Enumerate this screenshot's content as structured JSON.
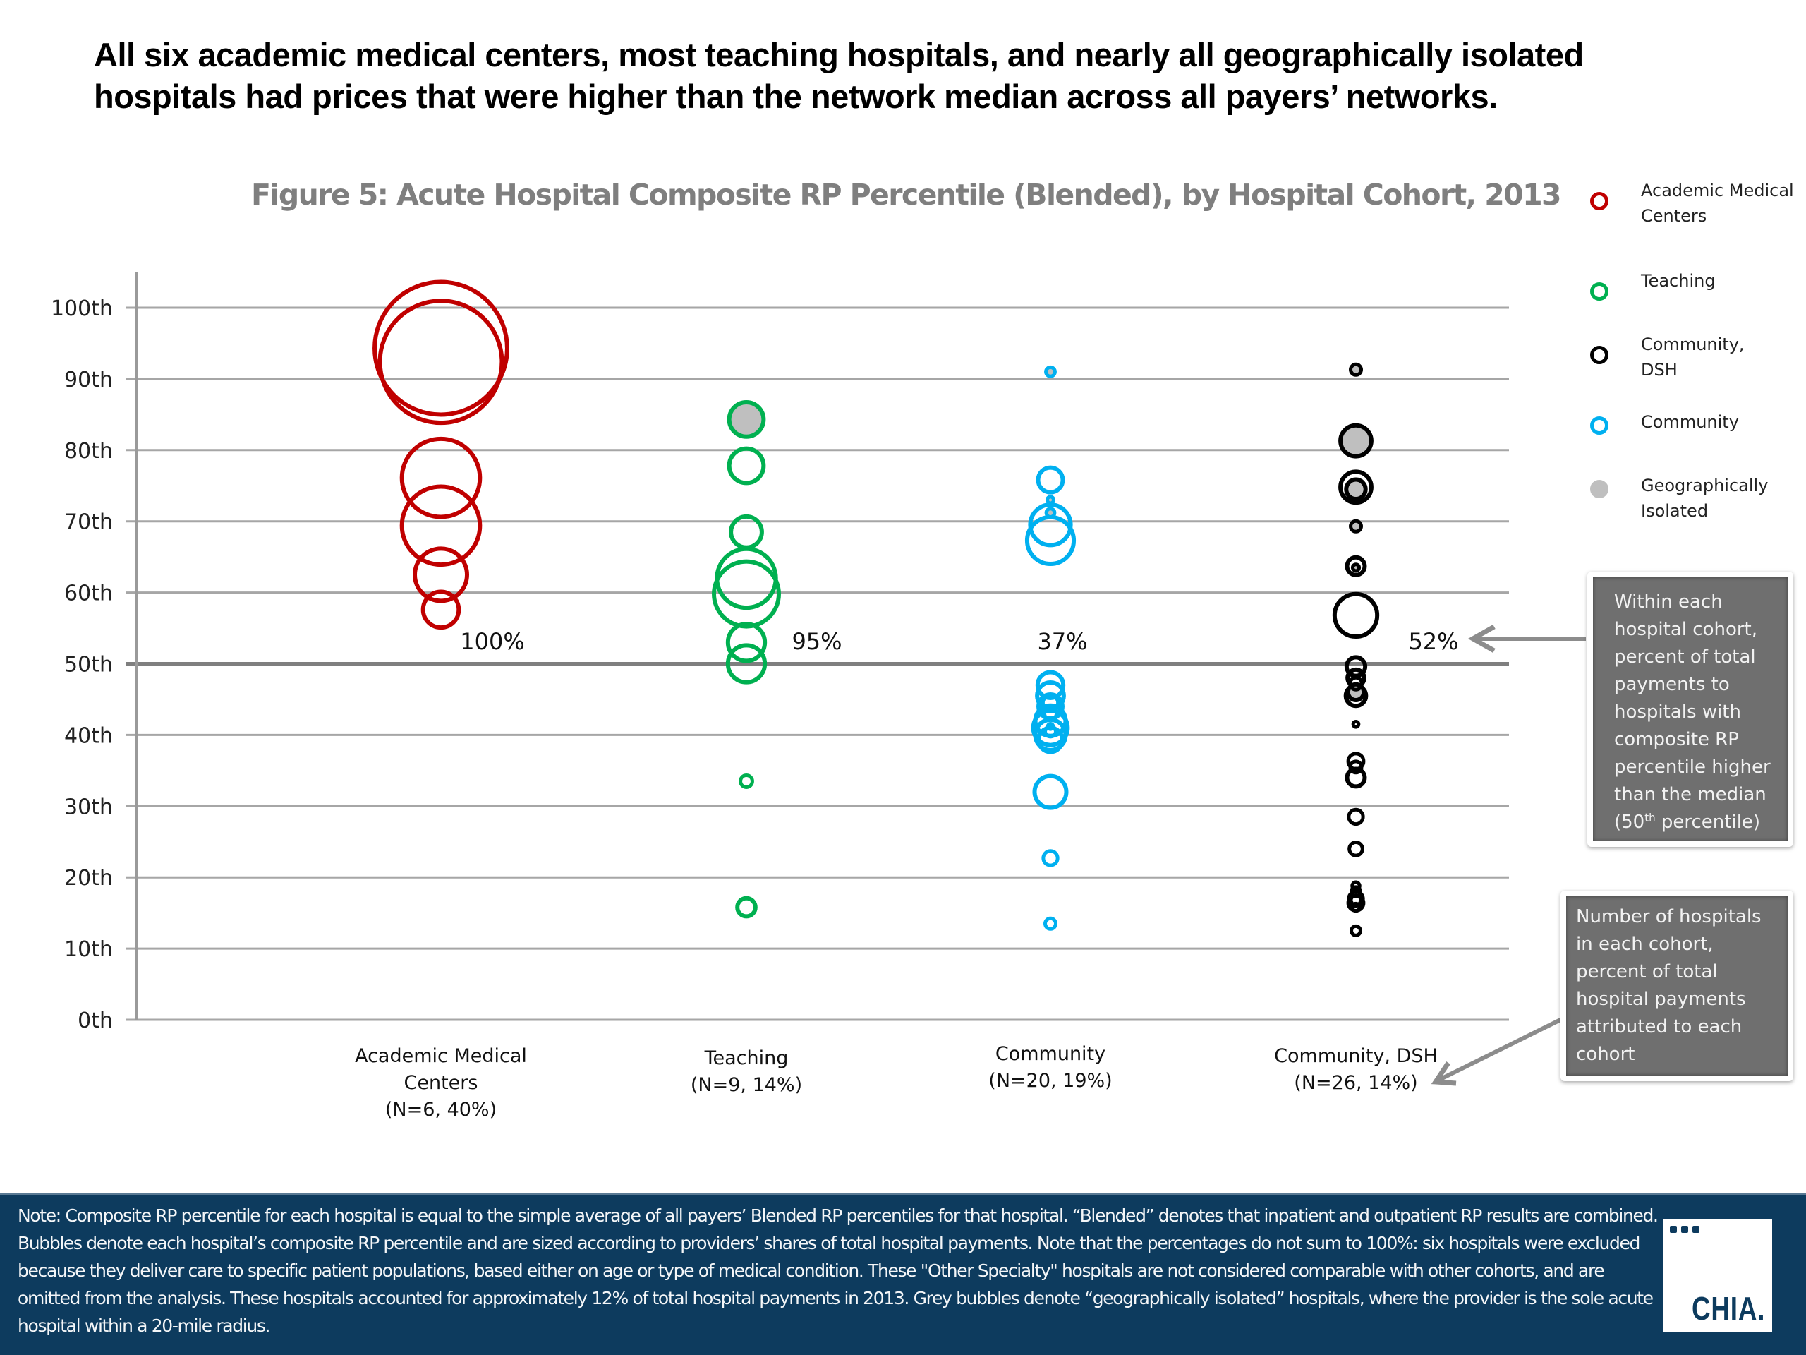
{
  "headline": "All six academic medical centers, most teaching hospitals, and nearly all geographically isolated hospitals had prices that were higher than the network median across all payers’ networks.",
  "callouts": {
    "above_median": {
      "text_main": "Within each hospital cohort, percent of total payments to hospitals with composite RP percentile higher than the median (50",
      "sup": "th",
      "text_end": " percentile)"
    },
    "cohort_info": "Number of hospitals in each cohort, percent of total hospital payments attributed to each cohort"
  },
  "footer": {
    "note": "Note: Composite RP percentile for each hospital is equal to the simple average of all payers’ Blended RP percentiles for that hospital. “Blended” denotes that inpatient and outpatient RP results are  combined. Bubbles denote each hospital’s composite RP percentile and are sized according to providers’ shares of total hospital payments. Note that the percentages do not sum to 100%: six hospitals were excluded because they deliver care to specific patient populations, based either on age or type of medical condition. These \"Other Specialty\" hospitals are not considered comparable with other cohorts, and are omitted from the analysis. These hospitals accounted for  approximately 12% of total hospital payments in 2013. Grey bubbles denote “geographically isolated” hospitals, where the provider is the sole acute hospital within a 20-mile radius.",
    "logo_text": "CHIA."
  },
  "chart_data": {
    "type": "scatter",
    "subtype": "bubble",
    "title": "Figure 5: Acute Hospital Composite RP Percentile (Blended), by Hospital Cohort, 2013",
    "xlabel": "",
    "ylabel": "",
    "ylim": [
      0,
      100
    ],
    "yticks": [
      0,
      10,
      20,
      30,
      40,
      50,
      60,
      70,
      80,
      90,
      100
    ],
    "ytick_labels": [
      "0th",
      "10th",
      "20th",
      "30th",
      "40th",
      "50th",
      "60th",
      "70th",
      "80th",
      "90th",
      "100th"
    ],
    "grid": true,
    "reference_line": {
      "y": 50,
      "label": "median (50th percentile)"
    },
    "legend_position": "right",
    "legend": [
      {
        "label": "Academic Medical Centers",
        "color": "#c00000",
        "style": "ring"
      },
      {
        "label": "Teaching",
        "color": "#00b050",
        "style": "ring"
      },
      {
        "label": "Community, DSH",
        "color": "#000000",
        "style": "ring"
      },
      {
        "label": "Community",
        "color": "#00b0f0",
        "style": "ring"
      },
      {
        "label": "Geographically Isolated",
        "color": "#bfbfbf",
        "style": "filled"
      }
    ],
    "geo_isolated_fill": "#bfbfbf",
    "size_note": "bubble area proportional to relative share of total hospital payments (relative units, estimated)",
    "categories": [
      {
        "name": "Academic Medical Centers",
        "label_lines": [
          "Academic Medical",
          "Centers",
          "(N=6, 40%)"
        ],
        "n": 6,
        "payment_share_pct": 40,
        "pct_above_median": "100%",
        "color": "#c00000",
        "points": [
          {
            "y": 94.3,
            "size": 94,
            "geo": false
          },
          {
            "y": 92.4,
            "size": 80,
            "geo": false
          },
          {
            "y": 76.1,
            "size": 34,
            "geo": false
          },
          {
            "y": 69.4,
            "size": 34,
            "geo": false
          },
          {
            "y": 62.5,
            "size": 16,
            "geo": false
          },
          {
            "y": 57.6,
            "size": 8,
            "geo": false
          }
        ]
      },
      {
        "name": "Teaching",
        "label_lines": [
          "Teaching",
          "(N=9, 14%)"
        ],
        "n": 9,
        "payment_share_pct": 14,
        "pct_above_median": "95%",
        "color": "#00b050",
        "points": [
          {
            "y": 84.3,
            "size": 7.5,
            "geo": true
          },
          {
            "y": 77.8,
            "size": 7.5,
            "geo": false
          },
          {
            "y": 68.5,
            "size": 6.2,
            "geo": false
          },
          {
            "y": 62.0,
            "size": 20,
            "geo": false
          },
          {
            "y": 59.8,
            "size": 24,
            "geo": false
          },
          {
            "y": 53.0,
            "size": 8.5,
            "geo": false
          },
          {
            "y": 50.0,
            "size": 8.5,
            "geo": false
          },
          {
            "y": 33.5,
            "size": 1.2,
            "geo": false
          },
          {
            "y": 15.8,
            "size": 2.5,
            "geo": false
          }
        ]
      },
      {
        "name": "Community",
        "label_lines": [
          "Community",
          "(N=20, 19%)"
        ],
        "n": 20,
        "payment_share_pct": 19,
        "pct_above_median": "37%",
        "color": "#00b0f0",
        "points": [
          {
            "y": 91.0,
            "size": 0.8,
            "geo": true
          },
          {
            "y": 75.8,
            "size": 4.2,
            "geo": false
          },
          {
            "y": 71.2,
            "size": 0.7,
            "geo": true
          },
          {
            "y": 69.5,
            "size": 10,
            "geo": false
          },
          {
            "y": 67.3,
            "size": 13,
            "geo": false
          },
          {
            "y": 73.0,
            "size": 0.5,
            "geo": true
          },
          {
            "y": 47.0,
            "size": 4.5,
            "geo": false
          },
          {
            "y": 45.5,
            "size": 4.8,
            "geo": false
          },
          {
            "y": 44.5,
            "size": 2.0,
            "geo": false
          },
          {
            "y": 44.0,
            "size": 4.0,
            "geo": false
          },
          {
            "y": 43.0,
            "size": 1.2,
            "geo": false
          },
          {
            "y": 42.0,
            "size": 6.0,
            "geo": false
          },
          {
            "y": 41.2,
            "size": 0.4,
            "geo": false
          },
          {
            "y": 41.0,
            "size": 7.5,
            "geo": false
          },
          {
            "y": 40.5,
            "size": 1.0,
            "geo": false
          },
          {
            "y": 40.0,
            "size": 6.0,
            "geo": false
          },
          {
            "y": 39.3,
            "size": 4.0,
            "geo": false
          },
          {
            "y": 32.0,
            "size": 6.5,
            "geo": false
          },
          {
            "y": 22.7,
            "size": 1.6,
            "geo": false
          },
          {
            "y": 13.5,
            "size": 1.0,
            "geo": false
          }
        ]
      },
      {
        "name": "Community, DSH",
        "label_lines": [
          "Community, DSH",
          "(N=26, 14%)"
        ],
        "n": 26,
        "payment_share_pct": 14,
        "pct_above_median": "52%",
        "color": "#000000",
        "points": [
          {
            "y": 91.3,
            "size": 1.0,
            "geo": true
          },
          {
            "y": 81.3,
            "size": 6.2,
            "geo": true
          },
          {
            "y": 74.8,
            "size": 6.2,
            "geo": false
          },
          {
            "y": 74.5,
            "size": 2.8,
            "geo": true
          },
          {
            "y": 69.3,
            "size": 1.0,
            "geo": true
          },
          {
            "y": 63.7,
            "size": 2.4,
            "geo": false
          },
          {
            "y": 63.5,
            "size": 0.5,
            "geo": true
          },
          {
            "y": 56.8,
            "size": 11,
            "geo": false
          },
          {
            "y": 49.6,
            "size": 2.6,
            "geo": false
          },
          {
            "y": 48.0,
            "size": 2.2,
            "geo": false
          },
          {
            "y": 47.2,
            "size": 1.2,
            "geo": false
          },
          {
            "y": 46.0,
            "size": 2.0,
            "geo": true
          },
          {
            "y": 45.5,
            "size": 3.0,
            "geo": false
          },
          {
            "y": 41.5,
            "size": 0.4,
            "geo": false
          },
          {
            "y": 36.3,
            "size": 1.8,
            "geo": false
          },
          {
            "y": 35.5,
            "size": 1.1,
            "geo": false
          },
          {
            "y": 34.0,
            "size": 2.4,
            "geo": false
          },
          {
            "y": 28.5,
            "size": 1.6,
            "geo": false
          },
          {
            "y": 24.0,
            "size": 1.4,
            "geo": false
          },
          {
            "y": 18.8,
            "size": 0.6,
            "geo": false
          },
          {
            "y": 18.0,
            "size": 0.8,
            "geo": false
          },
          {
            "y": 17.0,
            "size": 1.6,
            "geo": false
          },
          {
            "y": 16.4,
            "size": 1.8,
            "geo": false
          },
          {
            "y": 15.8,
            "size": 0.6,
            "geo": false
          },
          {
            "y": 12.5,
            "size": 0.8,
            "geo": false
          },
          {
            "y": 16.8,
            "size": 0.9,
            "geo": false
          }
        ]
      }
    ]
  }
}
